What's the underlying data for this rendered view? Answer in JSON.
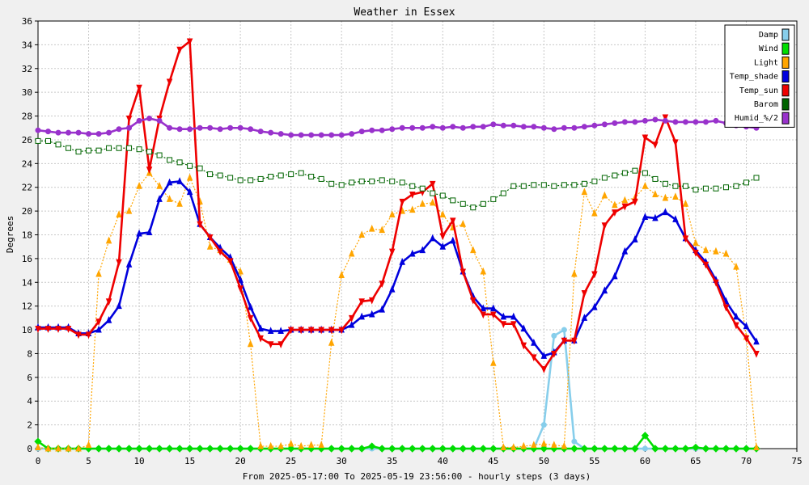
{
  "chart_data": {
    "type": "line",
    "title": "Weather in Essex",
    "xlabel": "From 2025-05-17:00 To 2025-05-19 23:56:00 - hourly steps (3 days)",
    "ylabel": "Degrees",
    "xlim": [
      0,
      75
    ],
    "ylim": [
      0,
      36
    ],
    "xticks": [
      0,
      5,
      10,
      15,
      20,
      25,
      30,
      35,
      40,
      45,
      50,
      55,
      60,
      65,
      70,
      75
    ],
    "yticks": [
      0,
      2,
      4,
      6,
      8,
      10,
      12,
      14,
      16,
      18,
      20,
      22,
      24,
      26,
      28,
      30,
      32,
      34,
      36
    ],
    "grid": true,
    "legend_position": "top-right",
    "series": [
      {
        "name": "Damp",
        "color": "#87ceeb",
        "style": "solid",
        "marker": "circle",
        "x": [
          0,
          1,
          2,
          3,
          4,
          5,
          6,
          7,
          8,
          9,
          10,
          11,
          12,
          13,
          14,
          15,
          16,
          17,
          18,
          19,
          20,
          21,
          22,
          23,
          24,
          25,
          26,
          27,
          28,
          29,
          30,
          31,
          32,
          33,
          34,
          35,
          36,
          37,
          38,
          39,
          40,
          41,
          42,
          43,
          44,
          45,
          46,
          47,
          48,
          49,
          50,
          51,
          52,
          53,
          54,
          55,
          56,
          57,
          58,
          59,
          60,
          61,
          62,
          63,
          64,
          65,
          66,
          67,
          68,
          69,
          70,
          71
        ],
        "values": [
          0,
          0,
          0,
          0,
          0,
          0,
          0,
          0,
          0,
          0,
          0,
          0,
          0,
          0,
          0,
          0,
          0,
          0,
          0,
          0,
          0,
          0,
          0,
          0,
          0,
          0,
          0,
          0,
          0,
          0,
          0,
          0,
          0,
          0,
          0,
          0,
          0,
          0,
          0,
          0,
          0,
          0,
          0,
          0,
          0,
          0,
          0,
          0,
          0,
          0,
          2,
          9.5,
          10,
          0.6,
          0,
          0,
          0,
          0,
          0,
          0,
          0,
          0,
          0,
          0,
          0,
          0,
          0,
          0,
          0,
          0,
          0,
          0
        ]
      },
      {
        "name": "Wind",
        "color": "#00dd00",
        "style": "solid",
        "marker": "diamond",
        "x": [
          0,
          1,
          2,
          3,
          4,
          5,
          6,
          7,
          8,
          9,
          10,
          11,
          12,
          13,
          14,
          15,
          16,
          17,
          18,
          19,
          20,
          21,
          22,
          23,
          24,
          25,
          26,
          27,
          28,
          29,
          30,
          31,
          32,
          33,
          34,
          35,
          36,
          37,
          38,
          39,
          40,
          41,
          42,
          43,
          44,
          45,
          46,
          47,
          48,
          49,
          50,
          51,
          52,
          53,
          54,
          55,
          56,
          57,
          58,
          59,
          60,
          61,
          62,
          63,
          64,
          65,
          66,
          67,
          68,
          69,
          70,
          71
        ],
        "values": [
          0.6,
          0,
          0,
          0,
          0,
          0,
          0,
          0,
          0,
          0,
          0,
          0,
          0,
          0,
          0,
          0,
          0,
          0,
          0,
          0,
          0,
          0,
          0,
          0,
          0,
          0,
          0,
          0,
          0,
          0,
          0,
          0,
          0,
          0.2,
          0,
          0,
          0,
          0,
          0,
          0,
          0,
          0,
          0,
          0,
          0,
          0,
          0,
          0,
          0,
          0,
          0,
          0,
          0,
          0,
          0,
          0,
          0,
          0,
          0,
          0,
          1.1,
          0,
          0,
          0,
          0,
          0.1,
          0,
          0,
          0,
          0,
          0,
          0
        ]
      },
      {
        "name": "Light",
        "color": "#ffa500",
        "style": "dotted",
        "marker": "triangle-up",
        "x": [
          0,
          1,
          2,
          3,
          4,
          5,
          6,
          7,
          8,
          9,
          10,
          11,
          12,
          13,
          14,
          15,
          16,
          17,
          18,
          19,
          20,
          21,
          22,
          23,
          24,
          25,
          26,
          27,
          28,
          29,
          30,
          31,
          32,
          33,
          34,
          35,
          36,
          37,
          38,
          39,
          40,
          41,
          42,
          43,
          44,
          45,
          46,
          47,
          48,
          49,
          50,
          51,
          52,
          53,
          54,
          55,
          56,
          57,
          58,
          59,
          60,
          61,
          62,
          63,
          64,
          65,
          66,
          67,
          68,
          69,
          70,
          71
        ],
        "values": [
          0.1,
          0,
          0,
          0,
          0,
          0.3,
          14.7,
          17.5,
          19.7,
          20,
          22.1,
          23.2,
          22.1,
          21,
          20.6,
          22.8,
          20.8,
          17,
          16.7,
          15.9,
          14.9,
          8.8,
          0.2,
          0.2,
          0.2,
          0.4,
          0.2,
          0.3,
          0.3,
          8.9,
          14.6,
          16.4,
          18,
          18.5,
          18.4,
          19.7,
          20,
          20.1,
          20.6,
          20.7,
          19.7,
          18.6,
          18.9,
          16.7,
          14.9,
          7.2,
          0.1,
          0.1,
          0.2,
          0.3,
          0.4,
          0.3,
          0.2,
          14.7,
          21.6,
          19.8,
          21.3,
          20.5,
          20.9,
          21.1,
          22.1,
          21.4,
          21.1,
          21.2,
          20.6,
          17.3,
          16.7,
          16.6,
          16.4,
          15.3,
          9.4,
          0.1
        ]
      },
      {
        "name": "Temp_shade",
        "color": "#0000dd",
        "style": "solid",
        "marker": "triangle-up",
        "x": [
          0,
          1,
          2,
          3,
          4,
          5,
          6,
          7,
          8,
          9,
          10,
          11,
          12,
          13,
          14,
          15,
          16,
          17,
          18,
          19,
          20,
          21,
          22,
          23,
          24,
          25,
          26,
          27,
          28,
          29,
          30,
          31,
          32,
          33,
          34,
          35,
          36,
          37,
          38,
          39,
          40,
          41,
          42,
          43,
          44,
          45,
          46,
          47,
          48,
          49,
          50,
          51,
          52,
          53,
          54,
          55,
          56,
          57,
          58,
          59,
          60,
          61,
          62,
          63,
          64,
          65,
          66,
          67,
          68,
          69,
          70,
          71
        ],
        "values": [
          10.2,
          10.2,
          10.2,
          10.2,
          9.7,
          9.7,
          10,
          10.8,
          12,
          15.5,
          18.1,
          18.2,
          21,
          22.4,
          22.5,
          21.6,
          18.9,
          17.8,
          16.9,
          16.1,
          14.2,
          11.9,
          10.1,
          9.9,
          9.9,
          10,
          10,
          10,
          10,
          10,
          10,
          10.4,
          11.1,
          11.3,
          11.7,
          13.4,
          15.7,
          16.4,
          16.7,
          17.7,
          17,
          17.5,
          14.9,
          12.8,
          11.8,
          11.8,
          11.1,
          11.1,
          10.1,
          8.9,
          7.8,
          8.1,
          9.1,
          9.1,
          11,
          11.9,
          13.3,
          14.5,
          16.6,
          17.6,
          19.5,
          19.4,
          19.9,
          19.3,
          17.7,
          16.7,
          15.7,
          14.2,
          12.4,
          11.1,
          10.3,
          9
        ]
      },
      {
        "name": "Temp_sun",
        "color": "#ee0000",
        "style": "solid",
        "marker": "triangle-down",
        "x": [
          0,
          1,
          2,
          3,
          4,
          5,
          6,
          7,
          8,
          9,
          10,
          11,
          12,
          13,
          14,
          15,
          16,
          17,
          18,
          19,
          20,
          21,
          22,
          23,
          24,
          25,
          26,
          27,
          28,
          29,
          30,
          31,
          32,
          33,
          34,
          35,
          36,
          37,
          38,
          39,
          40,
          41,
          42,
          43,
          44,
          45,
          46,
          47,
          48,
          49,
          50,
          51,
          52,
          53,
          54,
          55,
          56,
          57,
          58,
          59,
          60,
          61,
          62,
          63,
          64,
          65,
          66,
          67,
          68,
          69,
          70,
          71
        ],
        "values": [
          10.1,
          10.1,
          10.1,
          10.1,
          9.6,
          9.6,
          10.7,
          12.4,
          15.7,
          27.8,
          30.4,
          23.5,
          27.8,
          30.9,
          33.6,
          34.3,
          18.9,
          17.8,
          16.6,
          15.8,
          13.5,
          11,
          9.3,
          8.8,
          8.8,
          10,
          10,
          10,
          10,
          10,
          10,
          11,
          12.4,
          12.5,
          13.9,
          16.6,
          20.8,
          21.4,
          21.6,
          22.3,
          17.9,
          19.2,
          14.9,
          12.5,
          11.3,
          11.3,
          10.5,
          10.5,
          8.7,
          7.7,
          6.7,
          8,
          9.1,
          9.1,
          13.1,
          14.7,
          18.8,
          19.9,
          20.4,
          20.8,
          26.2,
          25.6,
          27.9,
          25.8,
          17.7,
          16.5,
          15.5,
          14,
          11.9,
          10.4,
          9.3,
          8
        ]
      },
      {
        "name": "Barom",
        "color": "#006400",
        "style": "dotted",
        "marker": "square",
        "x": [
          0,
          1,
          2,
          3,
          4,
          5,
          6,
          7,
          8,
          9,
          10,
          11,
          12,
          13,
          14,
          15,
          16,
          17,
          18,
          19,
          20,
          21,
          22,
          23,
          24,
          25,
          26,
          27,
          28,
          29,
          30,
          31,
          32,
          33,
          34,
          35,
          36,
          37,
          38,
          39,
          40,
          41,
          42,
          43,
          44,
          45,
          46,
          47,
          48,
          49,
          50,
          51,
          52,
          53,
          54,
          55,
          56,
          57,
          58,
          59,
          60,
          61,
          62,
          63,
          64,
          65,
          66,
          67,
          68,
          69,
          70,
          71
        ],
        "values": [
          25.9,
          25.9,
          25.6,
          25.3,
          25,
          25.1,
          25.1,
          25.3,
          25.3,
          25.3,
          25.2,
          25,
          24.7,
          24.3,
          24.1,
          23.8,
          23.6,
          23.1,
          23,
          22.8,
          22.6,
          22.6,
          22.7,
          22.9,
          23,
          23.1,
          23.2,
          22.9,
          22.7,
          22.3,
          22.2,
          22.4,
          22.5,
          22.5,
          22.6,
          22.5,
          22.4,
          22.1,
          21.9,
          21.5,
          21.3,
          20.9,
          20.6,
          20.3,
          20.6,
          21,
          21.5,
          22.1,
          22.1,
          22.2,
          22.2,
          22.1,
          22.2,
          22.2,
          22.3,
          22.5,
          22.8,
          23,
          23.2,
          23.4,
          23.2,
          22.7,
          22.3,
          22.1,
          22.1,
          21.8,
          21.9,
          21.9,
          22,
          22.1,
          22.4,
          22.8
        ]
      },
      {
        "name": "Humid_%/2",
        "color": "#9932cc",
        "style": "solid",
        "marker": "circle",
        "x": [
          0,
          1,
          2,
          3,
          4,
          5,
          6,
          7,
          8,
          9,
          10,
          11,
          12,
          13,
          14,
          15,
          16,
          17,
          18,
          19,
          20,
          21,
          22,
          23,
          24,
          25,
          26,
          27,
          28,
          29,
          30,
          31,
          32,
          33,
          34,
          35,
          36,
          37,
          38,
          39,
          40,
          41,
          42,
          43,
          44,
          45,
          46,
          47,
          48,
          49,
          50,
          51,
          52,
          53,
          54,
          55,
          56,
          57,
          58,
          59,
          60,
          61,
          62,
          63,
          64,
          65,
          66,
          67,
          68,
          69,
          70,
          71
        ],
        "values": [
          26.8,
          26.7,
          26.6,
          26.6,
          26.6,
          26.5,
          26.5,
          26.6,
          26.9,
          27,
          27.6,
          27.8,
          27.6,
          27,
          26.9,
          26.9,
          27,
          27,
          26.9,
          27,
          27,
          26.9,
          26.7,
          26.6,
          26.5,
          26.4,
          26.4,
          26.4,
          26.4,
          26.4,
          26.4,
          26.5,
          26.7,
          26.8,
          26.8,
          26.9,
          27,
          27,
          27,
          27.1,
          27,
          27.1,
          27,
          27.1,
          27.1,
          27.3,
          27.2,
          27.2,
          27.1,
          27.1,
          27,
          26.9,
          27,
          27,
          27.1,
          27.2,
          27.3,
          27.4,
          27.5,
          27.5,
          27.6,
          27.7,
          27.6,
          27.5,
          27.5,
          27.5,
          27.5,
          27.6,
          27.4,
          27.2,
          27.1,
          27
        ]
      }
    ]
  }
}
